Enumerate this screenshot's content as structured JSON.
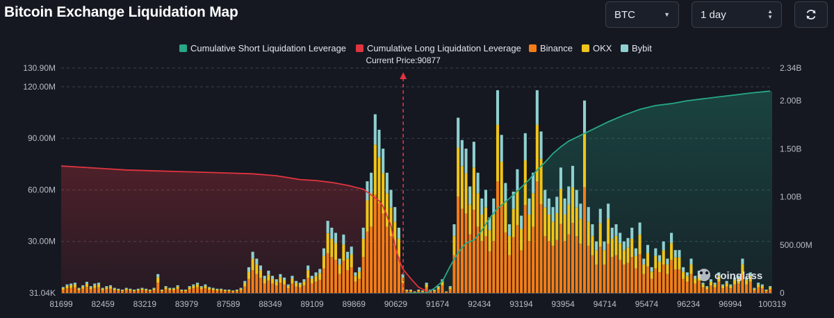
{
  "header": {
    "title": "Bitcoin Exchange Liquidation Map",
    "symbol": "BTC",
    "period": "1 day"
  },
  "colors": {
    "short_cum": "#26a889",
    "long_cum": "#e0343f",
    "binance": "#f47d17",
    "okx": "#f0c419",
    "bybit": "#8fd0d0",
    "bg": "#151821"
  },
  "watermark": "coinglass",
  "chart_data": {
    "type": "bar",
    "legend": [
      "Cumulative Short Liquidation Leverage",
      "Cumulative Long Liquidation Leverage",
      "Binance",
      "OKX",
      "Bybit"
    ],
    "legend_position": "top-center",
    "current_price_label": "Current Price:90877",
    "current_price": 90877,
    "x_ticks": [
      "81699",
      "82459",
      "83219",
      "83979",
      "87589",
      "88349",
      "89109",
      "89869",
      "90629",
      "91674",
      "92434",
      "93194",
      "93954",
      "94714",
      "95474",
      "96234",
      "96994",
      "100319"
    ],
    "y_left_ticks": [
      "31.04K",
      "30.00M",
      "60.00M",
      "90.00M",
      "120.00M",
      "130.90M"
    ],
    "y_left_values": [
      0,
      30,
      60,
      90,
      120,
      130.9
    ],
    "y_left_max": 130.9,
    "y_right_ticks": [
      "0",
      "500.00M",
      "1.00B",
      "1.50B",
      "2.00B",
      "2.34B"
    ],
    "y_right_values": [
      0,
      0.5,
      1.0,
      1.5,
      2.0,
      2.34
    ],
    "y_right_max": 2.34,
    "grid": true,
    "bar_count": 180,
    "current_price_index": 86,
    "bars_total_M": [
      3.5,
      5,
      5.5,
      6,
      3,
      4.5,
      6.5,
      4,
      5.5,
      6,
      3,
      4,
      4.5,
      3,
      2.5,
      2,
      3,
      2.5,
      2,
      2.5,
      3,
      2.5,
      2,
      3,
      11,
      2,
      4,
      3,
      3,
      4.5,
      2,
      2,
      4,
      5,
      6,
      4,
      5,
      3.5,
      3,
      2.5,
      2.5,
      2,
      2,
      1.5,
      2,
      3,
      7,
      15,
      24,
      20,
      16,
      10,
      13,
      10,
      8,
      11,
      9,
      5,
      10,
      7,
      6,
      8,
      16,
      10,
      12,
      14,
      26,
      42,
      38,
      35,
      20,
      34,
      24,
      27,
      12,
      15,
      38,
      65,
      70,
      104,
      95,
      84,
      70,
      60,
      50,
      38,
      11,
      2,
      2,
      1,
      2,
      1.5,
      6,
      2,
      2,
      4,
      8,
      1,
      4,
      40,
      102,
      89,
      84,
      62,
      88,
      70,
      55,
      60,
      44,
      55,
      118,
      92,
      64,
      40,
      59,
      72,
      45,
      93,
      55,
      70,
      118,
      94,
      60,
      55,
      50,
      56,
      73,
      55,
      62,
      74,
      60,
      52,
      112,
      50,
      40,
      30,
      49,
      30,
      52,
      38,
      40,
      35,
      30,
      32,
      38,
      26,
      41,
      20,
      28,
      15,
      26,
      22,
      30,
      20,
      35,
      25,
      25,
      15,
      12,
      20,
      10,
      13,
      6,
      4,
      8,
      6,
      12,
      5,
      7,
      5,
      9,
      10,
      20,
      9,
      12,
      3,
      6,
      5,
      2,
      4
    ],
    "bars_split": [
      0.55,
      0.28,
      0.17
    ],
    "cum_long_B": [
      [
        0,
        1.32
      ],
      [
        8,
        1.3
      ],
      [
        16,
        1.28
      ],
      [
        24,
        1.27
      ],
      [
        32,
        1.26
      ],
      [
        40,
        1.25
      ],
      [
        48,
        1.24
      ],
      [
        54,
        1.22
      ],
      [
        60,
        1.18
      ],
      [
        64,
        1.17
      ],
      [
        68,
        1.15
      ],
      [
        72,
        1.12
      ],
      [
        76,
        1.08
      ],
      [
        78,
        1.02
      ],
      [
        80,
        0.96
      ],
      [
        81,
        0.9
      ],
      [
        82,
        0.8
      ],
      [
        83,
        0.7
      ],
      [
        84,
        0.5
      ],
      [
        85,
        0.35
      ],
      [
        86,
        0.25
      ],
      [
        88,
        0.15
      ],
      [
        90,
        0.06
      ],
      [
        92,
        0.02
      ],
      [
        93,
        0
      ]
    ],
    "cum_short_B": [
      [
        87,
        0
      ],
      [
        92,
        0.0
      ],
      [
        94,
        0.05
      ],
      [
        96,
        0.12
      ],
      [
        98,
        0.28
      ],
      [
        100,
        0.42
      ],
      [
        102,
        0.52
      ],
      [
        104,
        0.55
      ],
      [
        106,
        0.65
      ],
      [
        108,
        0.78
      ],
      [
        110,
        0.88
      ],
      [
        112,
        0.95
      ],
      [
        114,
        1.02
      ],
      [
        116,
        1.1
      ],
      [
        118,
        1.18
      ],
      [
        120,
        1.28
      ],
      [
        122,
        1.36
      ],
      [
        124,
        1.45
      ],
      [
        126,
        1.52
      ],
      [
        128,
        1.58
      ],
      [
        130,
        1.62
      ],
      [
        134,
        1.7
      ],
      [
        138,
        1.78
      ],
      [
        142,
        1.85
      ],
      [
        146,
        1.91
      ],
      [
        150,
        1.95
      ],
      [
        154,
        1.97
      ],
      [
        158,
        2.0
      ],
      [
        162,
        2.02
      ],
      [
        166,
        2.04
      ],
      [
        170,
        2.06
      ],
      [
        174,
        2.08
      ],
      [
        179,
        2.1
      ]
    ]
  }
}
